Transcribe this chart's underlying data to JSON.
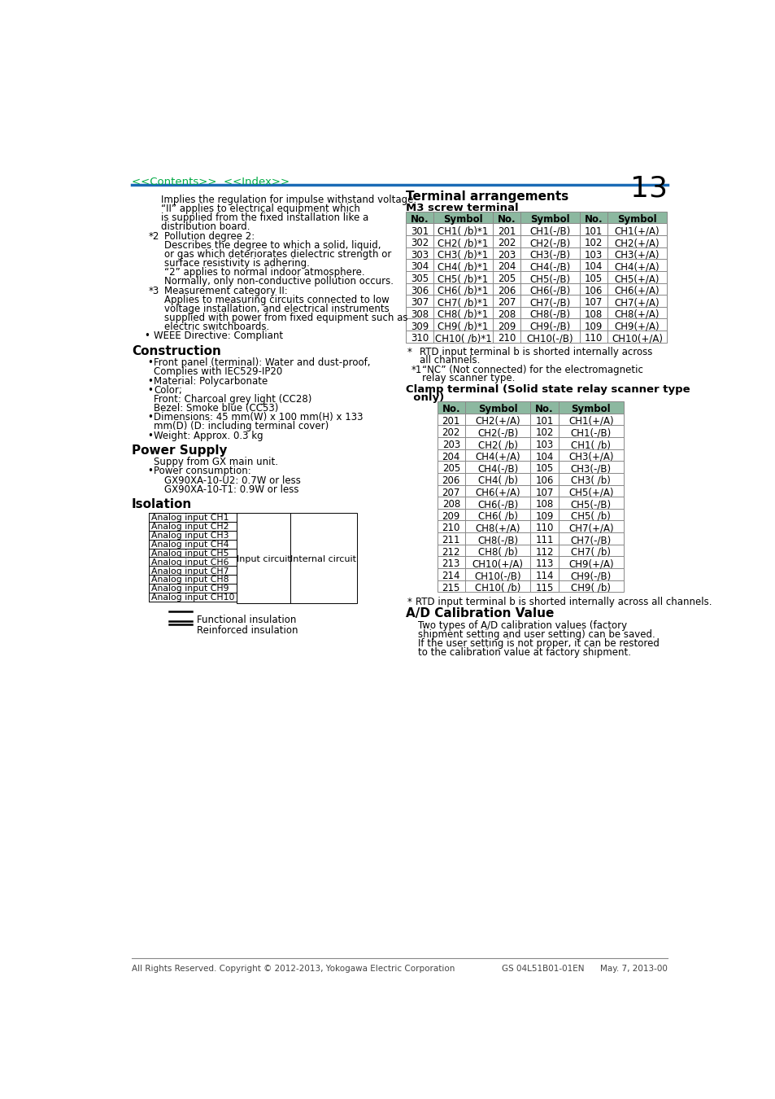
{
  "page_number": "13",
  "nav_links": "<<Contents>>  <<Index>>",
  "nav_color": "#00aa44",
  "header_line_color": "#1a6bb5",
  "footer_text": "All Rights Reserved. Copyright © 2012-2013, Yokogawa Electric Corporation",
  "footer_right": "GS 04L51B01-01EN      May. 7, 2013-00",
  "footer_line_color": "#888888",
  "terminal_title": "Terminal arrangements",
  "terminal_subtitle": "M3 screw terminal",
  "m3_headers": [
    "No.",
    "Symbol",
    "No.",
    "Symbol",
    "No.",
    "Symbol"
  ],
  "m3_rows": [
    [
      "301",
      "CH1( /b)*1",
      "201",
      "CH1(-/B)",
      "101",
      "CH1(+/A)"
    ],
    [
      "302",
      "CH2( /b)*1",
      "202",
      "CH2(-/B)",
      "102",
      "CH2(+/A)"
    ],
    [
      "303",
      "CH3( /b)*1",
      "203",
      "CH3(-/B)",
      "103",
      "CH3(+/A)"
    ],
    [
      "304",
      "CH4( /b)*1",
      "204",
      "CH4(-/B)",
      "104",
      "CH4(+/A)"
    ],
    [
      "305",
      "CH5( /b)*1",
      "205",
      "CH5(-/B)",
      "105",
      "CH5(+/A)"
    ],
    [
      "306",
      "CH6( /b)*1",
      "206",
      "CH6(-/B)",
      "106",
      "CH6(+/A)"
    ],
    [
      "307",
      "CH7( /b)*1",
      "207",
      "CH7(-/B)",
      "107",
      "CH7(+/A)"
    ],
    [
      "308",
      "CH8( /b)*1",
      "208",
      "CH8(-/B)",
      "108",
      "CH8(+/A)"
    ],
    [
      "309",
      "CH9( /b)*1",
      "209",
      "CH9(-/B)",
      "109",
      "CH9(+/A)"
    ],
    [
      "310",
      "CH10( /b)*1",
      "210",
      "CH10(-/B)",
      "110",
      "CH10(+/A)"
    ]
  ],
  "m3_note_star": "*",
  "m3_note_star_text": "RTD input terminal b is shorted internally across\nall channels.",
  "m3_note_star1": "*1",
  "m3_note_star1_text": "“NC” (Not connected) for the electromagnetic\nrelay scanner type.",
  "clamp_title1": "Clamp terminal (Solid state relay scanner type",
  "clamp_title2": "  only)",
  "clamp_headers": [
    "No.",
    "Symbol",
    "No.",
    "Symbol"
  ],
  "clamp_rows": [
    [
      "201",
      "CH2(+/A)",
      "101",
      "CH1(+/A)"
    ],
    [
      "202",
      "CH2(-/B)",
      "102",
      "CH1(-/B)"
    ],
    [
      "203",
      "CH2( /b)",
      "103",
      "CH1( /b)"
    ],
    [
      "204",
      "CH4(+/A)",
      "104",
      "CH3(+/A)"
    ],
    [
      "205",
      "CH4(-/B)",
      "105",
      "CH3(-/B)"
    ],
    [
      "206",
      "CH4( /b)",
      "106",
      "CH3( /b)"
    ],
    [
      "207",
      "CH6(+/A)",
      "107",
      "CH5(+/A)"
    ],
    [
      "208",
      "CH6(-/B)",
      "108",
      "CH5(-/B)"
    ],
    [
      "209",
      "CH6( /b)",
      "109",
      "CH5( /b)"
    ],
    [
      "210",
      "CH8(+/A)",
      "110",
      "CH7(+/A)"
    ],
    [
      "211",
      "CH8(-/B)",
      "111",
      "CH7(-/B)"
    ],
    [
      "212",
      "CH8( /b)",
      "112",
      "CH7( /b)"
    ],
    [
      "213",
      "CH10(+/A)",
      "113",
      "CH9(+/A)"
    ],
    [
      "214",
      "CH10(-/B)",
      "114",
      "CH9(-/B)"
    ],
    [
      "215",
      "CH10( /b)",
      "115",
      "CH9( /b)"
    ]
  ],
  "clamp_note": "*    RTD input terminal b is shorted internally across all channels.",
  "ad_title": "A/D Calibration Value",
  "ad_text": [
    "Two types of A/D calibration values (factory",
    "shipment setting and user setting) can be saved.",
    "If the user setting is not proper, it can be restored",
    "to the calibration value at factory shipment."
  ],
  "table_header_bg": "#8cb8a0",
  "table_header_fg": "#000000",
  "table_row_bg1": "#ffffff",
  "table_row_bg2": "#ffffff",
  "table_border": "#888888",
  "isolation_channels": [
    "Analog input CH1",
    "Analog input CH2",
    "Analog input CH3",
    "Analog input CH4",
    "Analog input CH5",
    "Analog input CH6",
    "Analog input CH7",
    "Analog input CH8",
    "Analog input CH9",
    "Analog input CH10"
  ]
}
